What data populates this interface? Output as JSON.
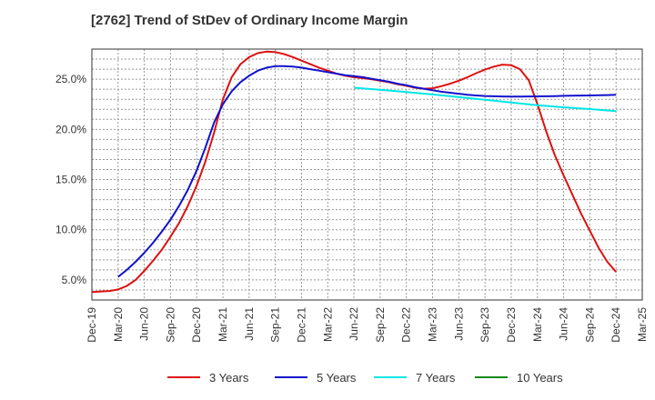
{
  "title": "[2762]  Trend of StDev of Ordinary Income Margin",
  "chart_data": {
    "type": "line",
    "title": "[2762]  Trend of StDev of Ordinary Income Margin",
    "xlabel": "",
    "ylabel": "",
    "x_ticks": [
      "Dec-19",
      "Mar-20",
      "Jun-20",
      "Sep-20",
      "Dec-20",
      "Mar-21",
      "Jun-21",
      "Sep-21",
      "Dec-21",
      "Mar-22",
      "Jun-22",
      "Sep-22",
      "Dec-22",
      "Mar-23",
      "Jun-23",
      "Sep-23",
      "Dec-23",
      "Mar-24",
      "Jun-24",
      "Sep-24",
      "Dec-24",
      "Mar-25"
    ],
    "y_ticks": [
      "5.0%",
      "10.0%",
      "15.0%",
      "20.0%",
      "25.0%"
    ],
    "ylim": [
      3.0,
      28.0
    ],
    "y_tick_values": [
      5,
      10,
      15,
      20,
      25
    ],
    "grid": true,
    "legend_position": "bottom",
    "series": [
      {
        "name": "3 Years",
        "color": "#dd1111",
        "points": [
          [
            "Dec-19",
            3.8
          ],
          [
            "Jan-20",
            3.85
          ],
          [
            "Feb-20",
            3.9
          ],
          [
            "Mar-20",
            4.05
          ],
          [
            "Apr-20",
            4.4
          ],
          [
            "May-20",
            5.0
          ],
          [
            "Jun-20",
            5.9
          ],
          [
            "Jul-20",
            6.9
          ],
          [
            "Aug-20",
            8.0
          ],
          [
            "Sep-20",
            9.3
          ],
          [
            "Oct-20",
            10.7
          ],
          [
            "Nov-20",
            12.4
          ],
          [
            "Dec-20",
            14.4
          ],
          [
            "Jan-21",
            16.8
          ],
          [
            "Feb-21",
            19.7
          ],
          [
            "Mar-21",
            23.0
          ],
          [
            "Apr-21",
            25.2
          ],
          [
            "May-21",
            26.5
          ],
          [
            "Jun-21",
            27.2
          ],
          [
            "Jul-21",
            27.6
          ],
          [
            "Aug-21",
            27.75
          ],
          [
            "Sep-21",
            27.7
          ],
          [
            "Oct-21",
            27.5
          ],
          [
            "Nov-21",
            27.2
          ],
          [
            "Dec-21",
            26.85
          ],
          [
            "Jan-22",
            26.5
          ],
          [
            "Feb-22",
            26.15
          ],
          [
            "Mar-22",
            25.85
          ],
          [
            "Apr-22",
            25.55
          ],
          [
            "May-22",
            25.35
          ],
          [
            "Jun-22",
            25.2
          ],
          [
            "Jul-22",
            25.1
          ],
          [
            "Aug-22",
            25.0
          ],
          [
            "Sep-22",
            24.85
          ],
          [
            "Oct-22",
            24.7
          ],
          [
            "Nov-22",
            24.5
          ],
          [
            "Dec-22",
            24.35
          ],
          [
            "Jan-23",
            24.15
          ],
          [
            "Feb-23",
            24.05
          ],
          [
            "Mar-23",
            24.1
          ],
          [
            "Apr-23",
            24.3
          ],
          [
            "May-23",
            24.55
          ],
          [
            "Jun-23",
            24.85
          ],
          [
            "Jul-23",
            25.2
          ],
          [
            "Aug-23",
            25.6
          ],
          [
            "Sep-23",
            25.95
          ],
          [
            "Oct-23",
            26.25
          ],
          [
            "Nov-23",
            26.45
          ],
          [
            "Dec-23",
            26.4
          ],
          [
            "Jan-24",
            26.0
          ],
          [
            "Feb-24",
            24.9
          ],
          [
            "Mar-24",
            22.5
          ],
          [
            "Apr-24",
            19.8
          ],
          [
            "May-24",
            17.4
          ],
          [
            "Jun-24",
            15.4
          ],
          [
            "Jul-24",
            13.5
          ],
          [
            "Aug-24",
            11.6
          ],
          [
            "Sep-24",
            9.9
          ],
          [
            "Oct-24",
            8.2
          ],
          [
            "Nov-24",
            6.8
          ],
          [
            "Dec-24",
            5.8
          ]
        ]
      },
      {
        "name": "5 Years",
        "color": "#1111cc",
        "points": [
          [
            "Mar-20",
            5.3
          ],
          [
            "Apr-20",
            6.0
          ],
          [
            "May-20",
            6.8
          ],
          [
            "Jun-20",
            7.7
          ],
          [
            "Jul-20",
            8.7
          ],
          [
            "Aug-20",
            9.8
          ],
          [
            "Sep-20",
            11.0
          ],
          [
            "Oct-20",
            12.4
          ],
          [
            "Nov-20",
            14.0
          ],
          [
            "Dec-20",
            15.9
          ],
          [
            "Jan-21",
            18.2
          ],
          [
            "Feb-21",
            20.7
          ],
          [
            "Mar-21",
            22.5
          ],
          [
            "Apr-21",
            23.8
          ],
          [
            "May-21",
            24.7
          ],
          [
            "Jun-21",
            25.35
          ],
          [
            "Jul-21",
            25.85
          ],
          [
            "Aug-21",
            26.15
          ],
          [
            "Sep-21",
            26.3
          ],
          [
            "Oct-21",
            26.3
          ],
          [
            "Nov-21",
            26.25
          ],
          [
            "Dec-21",
            26.15
          ],
          [
            "Jan-22",
            26.0
          ],
          [
            "Feb-22",
            25.85
          ],
          [
            "Mar-22",
            25.7
          ],
          [
            "Apr-22",
            25.55
          ],
          [
            "May-22",
            25.4
          ],
          [
            "Jun-22",
            25.3
          ],
          [
            "Jul-22",
            25.2
          ],
          [
            "Aug-22",
            25.05
          ],
          [
            "Sep-22",
            24.9
          ],
          [
            "Oct-22",
            24.75
          ],
          [
            "Nov-22",
            24.55
          ],
          [
            "Dec-22",
            24.4
          ],
          [
            "Jan-23",
            24.2
          ],
          [
            "Feb-23",
            24.05
          ],
          [
            "Mar-23",
            23.9
          ],
          [
            "Apr-23",
            23.75
          ],
          [
            "May-23",
            23.65
          ],
          [
            "Jun-23",
            23.55
          ],
          [
            "Jul-23",
            23.45
          ],
          [
            "Aug-23",
            23.38
          ],
          [
            "Sep-23",
            23.33
          ],
          [
            "Oct-23",
            23.3
          ],
          [
            "Nov-23",
            23.28
          ],
          [
            "Dec-23",
            23.27
          ],
          [
            "Jan-24",
            23.27
          ],
          [
            "Feb-24",
            23.28
          ],
          [
            "Mar-24",
            23.29
          ],
          [
            "Apr-24",
            23.3
          ],
          [
            "May-24",
            23.32
          ],
          [
            "Jun-24",
            23.34
          ],
          [
            "Jul-24",
            23.35
          ],
          [
            "Aug-24",
            23.37
          ],
          [
            "Sep-24",
            23.38
          ],
          [
            "Oct-24",
            23.4
          ],
          [
            "Nov-24",
            23.42
          ],
          [
            "Dec-24",
            23.45
          ]
        ]
      },
      {
        "name": "7 Years",
        "color": "#00e5e5",
        "points": [
          [
            "Jun-22",
            24.15
          ],
          [
            "Sep-22",
            23.95
          ],
          [
            "Dec-22",
            23.72
          ],
          [
            "Mar-23",
            23.48
          ],
          [
            "Jun-23",
            23.22
          ],
          [
            "Sep-23",
            22.95
          ],
          [
            "Dec-23",
            22.67
          ],
          [
            "Mar-24",
            22.4
          ],
          [
            "Jun-24",
            22.2
          ],
          [
            "Sep-24",
            22.02
          ],
          [
            "Dec-24",
            21.82
          ]
        ]
      },
      {
        "name": "10 Years",
        "color": "#118811",
        "points": []
      }
    ]
  }
}
